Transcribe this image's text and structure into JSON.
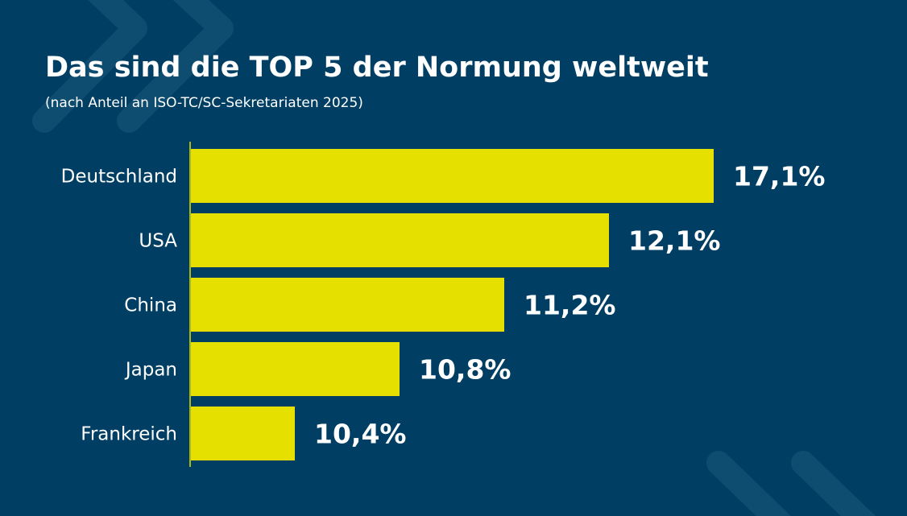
{
  "chart_data": {
    "type": "bar",
    "orientation": "horizontal",
    "title": "Das sind die TOP 5 der Normung weltweit",
    "subtitle": "(nach Anteil an ISO-TC/SC-Sekretariaten 2025)",
    "categories": [
      "Deutschland",
      "USA",
      "China",
      "Japan",
      "Frankreich"
    ],
    "values": [
      17.1,
      12.1,
      11.2,
      10.8,
      10.4
    ],
    "value_labels": [
      "17,1%",
      "12,1%",
      "11,2%",
      "10,8%",
      "10,4%"
    ],
    "unit": "%",
    "grid": false,
    "legend": "none",
    "bar_scaling": "by rank, not proportional to values"
  },
  "colors": {
    "background": "#003f63",
    "bar": "#e6e000",
    "text": "#ffffff",
    "decoration": "#0f4d70"
  }
}
